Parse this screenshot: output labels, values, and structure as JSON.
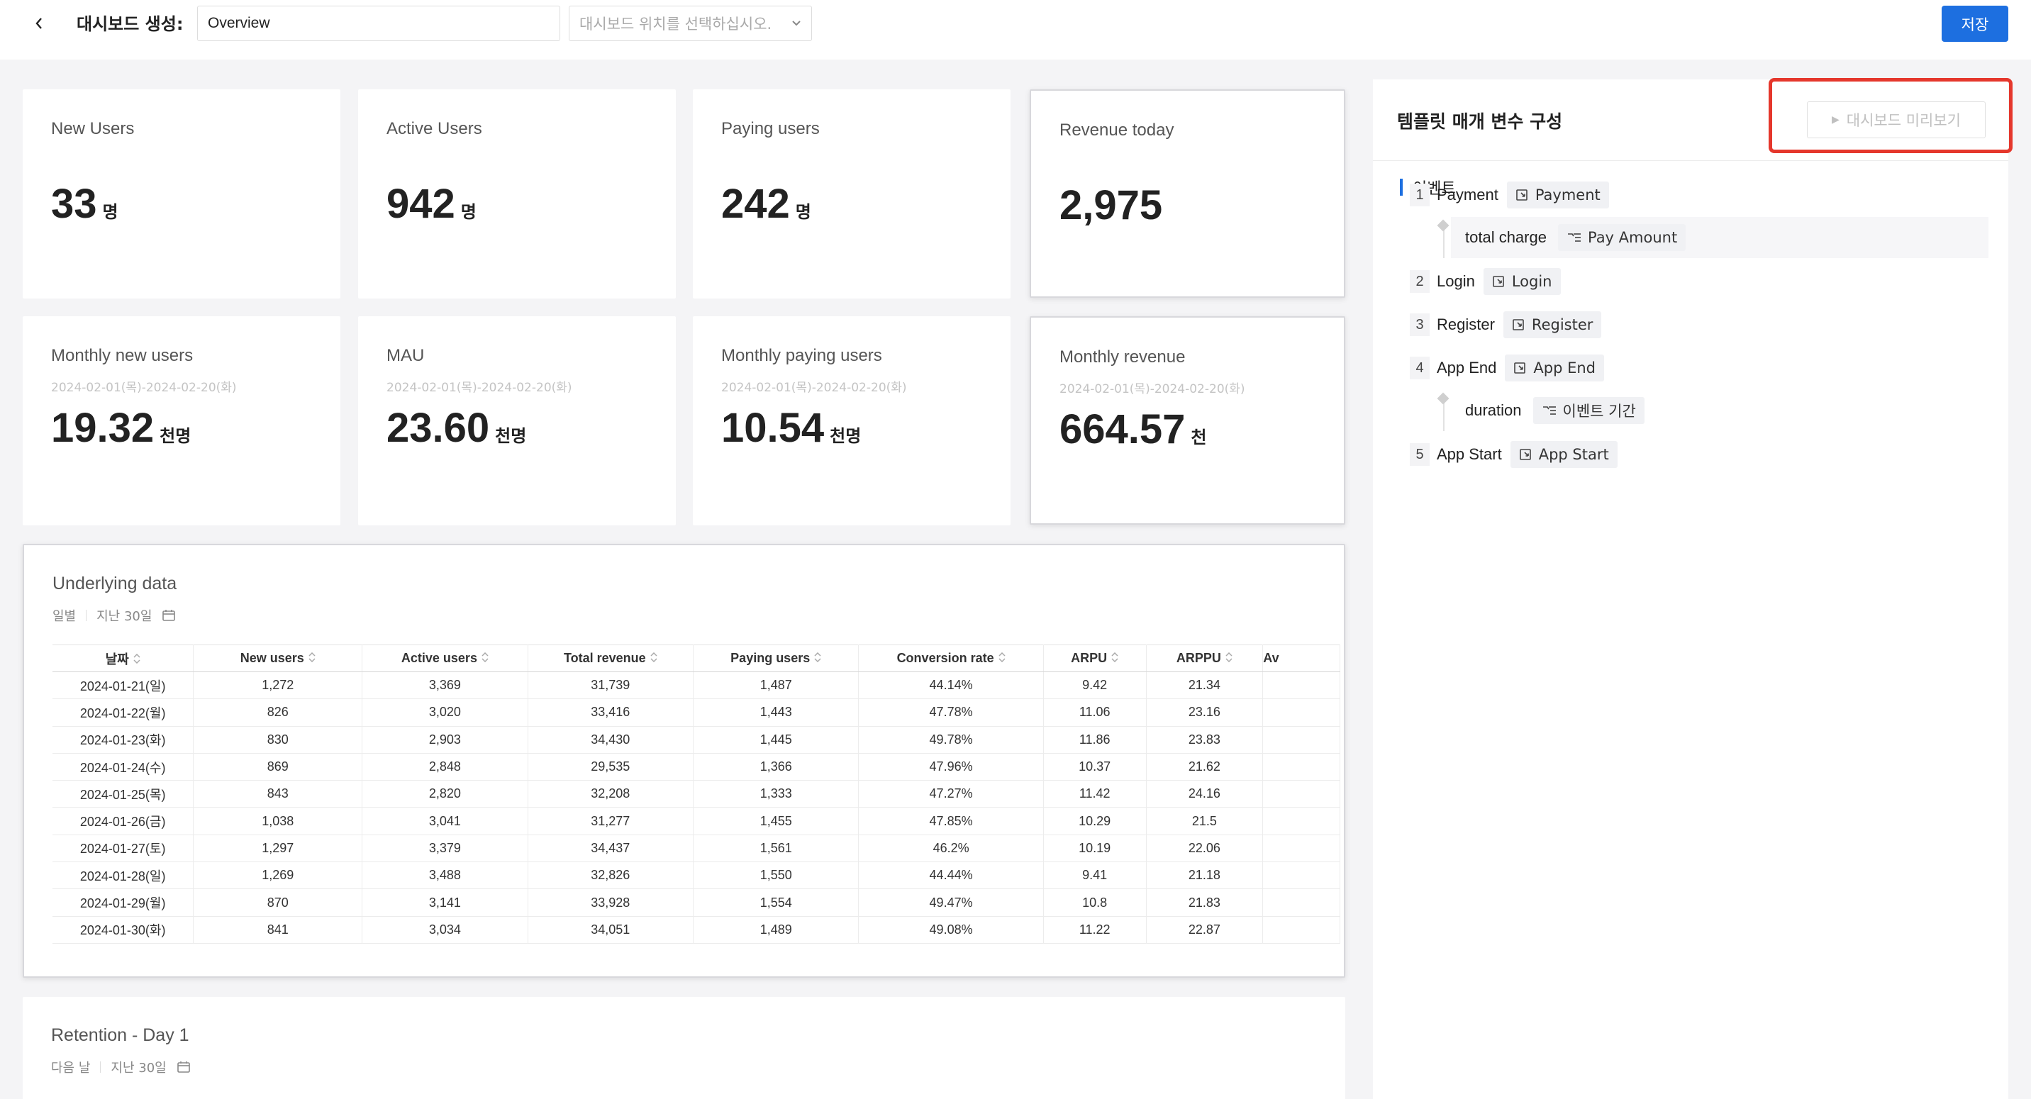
{
  "header": {
    "title": "대시보드 생성:",
    "name_value": "Overview",
    "location_placeholder": "대시보드 위치를 선택하십시오.",
    "save_label": "저장"
  },
  "kpis": [
    {
      "title": "New Users",
      "sub": "",
      "value": "33",
      "unit": "명"
    },
    {
      "title": "Active Users",
      "sub": "",
      "value": "942",
      "unit": "명"
    },
    {
      "title": "Paying users",
      "sub": "",
      "value": "242",
      "unit": "명"
    },
    {
      "title": "Revenue today",
      "sub": "",
      "value": "2,975",
      "unit": ""
    },
    {
      "title": "Monthly new users",
      "sub": "2024-02-01(목)-2024-02-20(화)",
      "value": "19.32",
      "unit": "천명"
    },
    {
      "title": "MAU",
      "sub": "2024-02-01(목)-2024-02-20(화)",
      "value": "23.60",
      "unit": "천명"
    },
    {
      "title": "Monthly paying users",
      "sub": "2024-02-01(목)-2024-02-20(화)",
      "value": "10.54",
      "unit": "천명"
    },
    {
      "title": "Monthly revenue",
      "sub": "2024-02-01(목)-2024-02-20(화)",
      "value": "664.57",
      "unit": "천"
    }
  ],
  "underlying": {
    "title": "Underlying data",
    "period": "일별",
    "range": "지난 30일",
    "columns": [
      "날짜",
      "New users",
      "Active users",
      "Total revenue",
      "Paying users",
      "Conversion rate",
      "ARPU",
      "ARPPU",
      "Av"
    ],
    "rows": [
      [
        "2024-01-21(일)",
        "1,272",
        "3,369",
        "31,739",
        "1,487",
        "44.14%",
        "9.42",
        "21.34",
        ""
      ],
      [
        "2024-01-22(월)",
        "826",
        "3,020",
        "33,416",
        "1,443",
        "47.78%",
        "11.06",
        "23.16",
        ""
      ],
      [
        "2024-01-23(화)",
        "830",
        "2,903",
        "34,430",
        "1,445",
        "49.78%",
        "11.86",
        "23.83",
        ""
      ],
      [
        "2024-01-24(수)",
        "869",
        "2,848",
        "29,535",
        "1,366",
        "47.96%",
        "10.37",
        "21.62",
        ""
      ],
      [
        "2024-01-25(목)",
        "843",
        "2,820",
        "32,208",
        "1,333",
        "47.27%",
        "11.42",
        "24.16",
        ""
      ],
      [
        "2024-01-26(금)",
        "1,038",
        "3,041",
        "31,277",
        "1,455",
        "47.85%",
        "10.29",
        "21.5",
        ""
      ],
      [
        "2024-01-27(토)",
        "1,297",
        "3,379",
        "34,437",
        "1,561",
        "46.2%",
        "10.19",
        "22.06",
        ""
      ],
      [
        "2024-01-28(일)",
        "1,269",
        "3,488",
        "32,826",
        "1,550",
        "44.44%",
        "9.41",
        "21.18",
        ""
      ],
      [
        "2024-01-29(월)",
        "870",
        "3,141",
        "33,928",
        "1,554",
        "49.47%",
        "10.8",
        "21.83",
        ""
      ],
      [
        "2024-01-30(화)",
        "841",
        "3,034",
        "34,051",
        "1,489",
        "49.08%",
        "11.22",
        "22.87",
        ""
      ]
    ]
  },
  "retention": {
    "title": "Retention - Day 1",
    "period": "다음 날",
    "range": "지난 30일"
  },
  "panel": {
    "title": "템플릿 매개 변수 구성",
    "preview_label": "대시보드 미리보기",
    "group_label": "이벤트",
    "events": [
      {
        "index": "1",
        "name": "Payment",
        "chip": "Payment",
        "prop": {
          "name": "total charge",
          "chip": "Pay Amount"
        }
      },
      {
        "index": "2",
        "name": "Login",
        "chip": "Login",
        "prop": null
      },
      {
        "index": "3",
        "name": "Register",
        "chip": "Register",
        "prop": null
      },
      {
        "index": "4",
        "name": "App End",
        "chip": "App End",
        "prop": {
          "name": "duration",
          "chip": "이벤트 기간"
        }
      },
      {
        "index": "5",
        "name": "App Start",
        "chip": "App Start",
        "prop": null
      }
    ]
  },
  "colors": {
    "accent": "#1d6fe0",
    "highlight": "#e5372c"
  },
  "icons": [
    "chevron-left-icon",
    "chevron-down-icon",
    "calendar-icon",
    "sort-icon",
    "play-icon",
    "event-icon",
    "property-icon"
  ]
}
